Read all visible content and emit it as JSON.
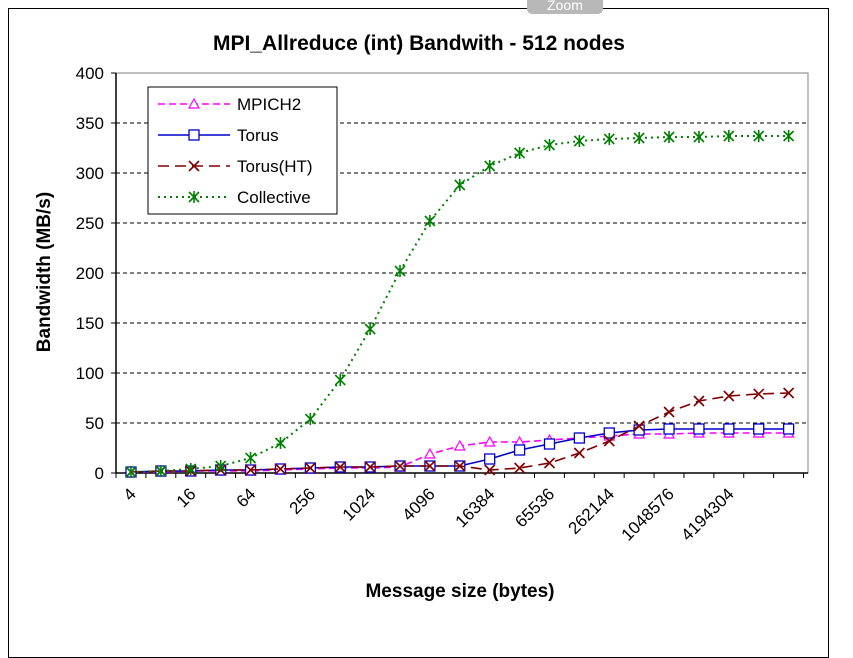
{
  "overlay": {
    "zoom_label": "Zoom"
  },
  "chart_data": {
    "type": "line",
    "title": "MPI_Allreduce (int) Bandwith - 512 nodes",
    "xlabel": "Message size (bytes)",
    "ylabel": "Bandwidth (MB/s)",
    "ylim": [
      0,
      400
    ],
    "yticks": [
      0,
      50,
      100,
      150,
      200,
      250,
      300,
      350,
      400
    ],
    "grid": "horizontal dashed",
    "legend_position": "top-left",
    "x_tick_labels": [
      "4",
      "16",
      "64",
      "256",
      "1024",
      "4096",
      "16384",
      "65536",
      "262144",
      "1048576",
      "4194304"
    ],
    "x": [
      4,
      8,
      16,
      32,
      64,
      128,
      256,
      512,
      1024,
      2048,
      4096,
      8192,
      16384,
      32768,
      65536,
      131072,
      262144,
      524288,
      1048576,
      2097152,
      4194304,
      8388608,
      16777216
    ],
    "series": [
      {
        "name": "MPICH2",
        "color": "#ff00ff",
        "marker": "triangle",
        "line": "dash",
        "values": [
          1,
          1,
          2,
          2,
          2,
          3,
          4,
          5,
          5,
          6,
          19,
          27,
          31,
          31,
          33,
          35,
          37,
          39,
          39,
          40,
          40,
          40,
          40
        ]
      },
      {
        "name": "Torus",
        "color": "#0000cc",
        "marker": "square",
        "line": "solid",
        "values": [
          1,
          2,
          2,
          3,
          3,
          4,
          5,
          6,
          6,
          7,
          7,
          7,
          14,
          23,
          29,
          35,
          40,
          43,
          44,
          44,
          44,
          44,
          44
        ]
      },
      {
        "name": "Torus(HT)",
        "color": "#800000",
        "marker": "x",
        "line": "longdash",
        "values": [
          1,
          2,
          2,
          3,
          3,
          4,
          5,
          6,
          6,
          7,
          7,
          7,
          3,
          5,
          10,
          20,
          32,
          47,
          61,
          72,
          77,
          79,
          80
        ]
      },
      {
        "name": "Collective",
        "color": "#008000",
        "marker": "asterisk",
        "line": "dot",
        "values": [
          1,
          2,
          4,
          7,
          15,
          30,
          54,
          93,
          144,
          202,
          252,
          288,
          307,
          320,
          328,
          332,
          334,
          335,
          336,
          336,
          337,
          337,
          337
        ]
      }
    ]
  }
}
